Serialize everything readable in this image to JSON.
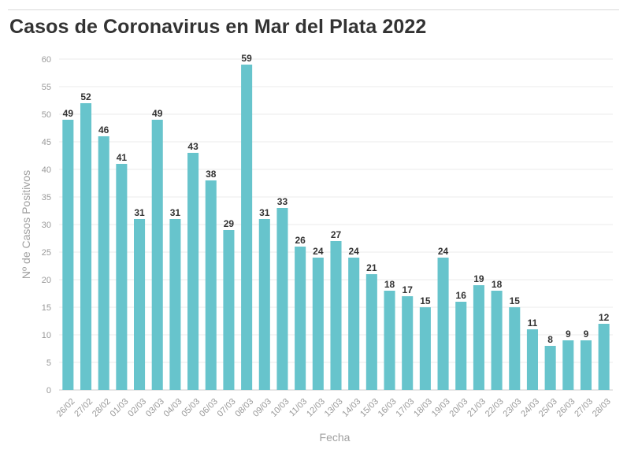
{
  "chart_data": {
    "type": "bar",
    "title": "Casos de Coronavirus en Mar del Plata 2022",
    "xlabel": "Fecha",
    "ylabel": "Nº de Casos Positivos",
    "ylim": [
      0,
      60
    ],
    "yticks": [
      0,
      5,
      10,
      15,
      20,
      25,
      30,
      35,
      40,
      45,
      50,
      55,
      60
    ],
    "grid": true,
    "categories": [
      "26/02",
      "27/02",
      "28/02",
      "01/03",
      "02/03",
      "03/03",
      "04/03",
      "05/03",
      "06/03",
      "07/03",
      "08/03",
      "09/03",
      "10/03",
      "11/03",
      "12/03",
      "13/03",
      "14/03",
      "15/03",
      "16/03",
      "17/03",
      "18/03",
      "19/03",
      "20/03",
      "21/03",
      "22/03",
      "23/03",
      "24/03",
      "25/03",
      "26/03",
      "27/03",
      "28/03"
    ],
    "values": [
      49,
      52,
      46,
      41,
      31,
      49,
      31,
      43,
      38,
      29,
      59,
      31,
      33,
      26,
      24,
      27,
      24,
      21,
      18,
      17,
      15,
      24,
      16,
      19,
      18,
      15,
      11,
      8,
      9,
      9,
      12
    ],
    "bar_color": "#67c4cc"
  }
}
